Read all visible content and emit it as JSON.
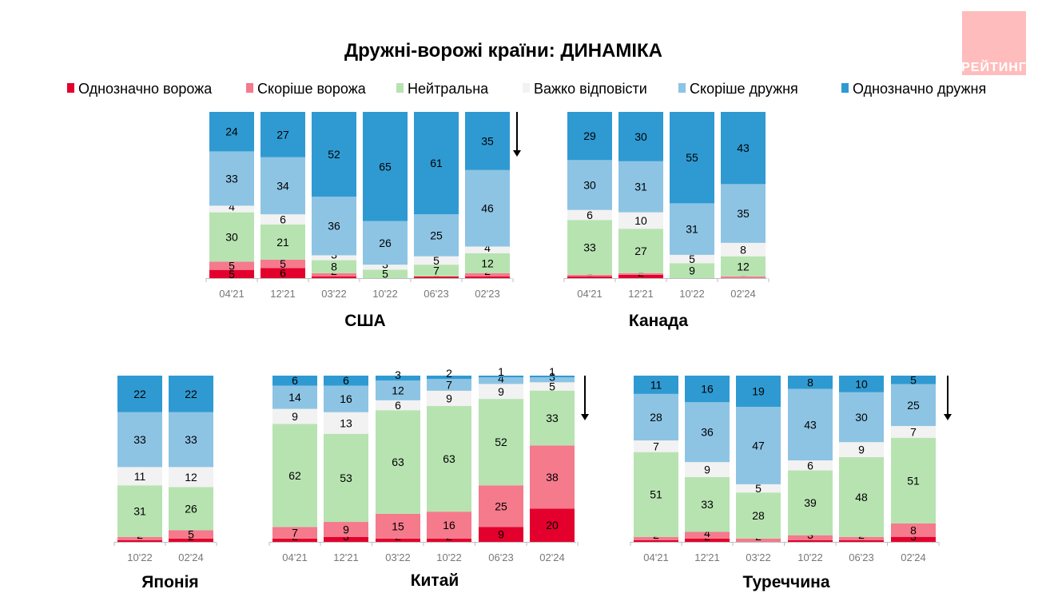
{
  "title": "Дружні-ворожі країни: ДИНАМІКА",
  "logo": "РЕЙТИНГ",
  "legend": [
    {
      "name": "Однозначно ворожа",
      "color": "#e3002d"
    },
    {
      "name": "Скоріше ворожа",
      "color": "#f47a8c"
    },
    {
      "name": "Нейтральна",
      "color": "#b7e3b1"
    },
    {
      "name": "Важко відповісти",
      "color": "#f2f2f2"
    },
    {
      "name": "Скоріше дружня",
      "color": "#8dc4e4"
    },
    {
      "name": "Однозначно дружня",
      "color": "#2f9ad2"
    }
  ],
  "chart_data": [
    {
      "type": "bar",
      "stacked": true,
      "title": "США",
      "categories": [
        "04'21",
        "12'21",
        "03'22",
        "10'22",
        "06'23",
        "02'23"
      ],
      "series": [
        {
          "name": "Однозначно ворожа",
          "values": [
            5,
            6,
            1,
            0,
            1,
            1
          ]
        },
        {
          "name": "Скоріше ворожа",
          "values": [
            5,
            5,
            2,
            0,
            0,
            2
          ]
        },
        {
          "name": "Нейтральна",
          "values": [
            30,
            21,
            8,
            5,
            7,
            12
          ]
        },
        {
          "name": "Важко відповісти",
          "values": [
            4,
            6,
            3,
            3,
            5,
            4
          ]
        },
        {
          "name": "Скоріше дружня",
          "values": [
            33,
            34,
            36,
            26,
            25,
            46
          ]
        },
        {
          "name": "Однозначно дружня",
          "values": [
            24,
            27,
            52,
            65,
            61,
            35
          ]
        }
      ],
      "trend_arrow": "down"
    },
    {
      "type": "bar",
      "stacked": true,
      "title": "Канада",
      "categories": [
        "04'21",
        "12'21",
        "10'22",
        "02'24"
      ],
      "series": [
        {
          "name": "Однозначно ворожа",
          "values": [
            1,
            2,
            0,
            0
          ]
        },
        {
          "name": "Скоріше ворожа",
          "values": [
            1,
            1,
            0,
            1
          ]
        },
        {
          "name": "Нейтральна",
          "values": [
            33,
            27,
            9,
            12
          ]
        },
        {
          "name": "Важко відповісти",
          "values": [
            6,
            10,
            5,
            8
          ]
        },
        {
          "name": "Скоріше дружня",
          "values": [
            30,
            31,
            31,
            35
          ]
        },
        {
          "name": "Однозначно дружня",
          "values": [
            29,
            30,
            55,
            43
          ]
        }
      ]
    },
    {
      "type": "bar",
      "stacked": true,
      "title": "Японія",
      "categories": [
        "10'22",
        "02'24"
      ],
      "series": [
        {
          "name": "Однозначно ворожа",
          "values": [
            1,
            2
          ]
        },
        {
          "name": "Скоріше ворожа",
          "values": [
            2,
            5
          ]
        },
        {
          "name": "Нейтральна",
          "values": [
            31,
            26
          ]
        },
        {
          "name": "Важко відповісти",
          "values": [
            11,
            12
          ]
        },
        {
          "name": "Скоріше дружня",
          "values": [
            33,
            33
          ]
        },
        {
          "name": "Однозначно дружня",
          "values": [
            22,
            22
          ]
        }
      ]
    },
    {
      "type": "bar",
      "stacked": true,
      "title": "Китай",
      "categories": [
        "04'21",
        "12'21",
        "03'22",
        "10'22",
        "06'23",
        "02'24"
      ],
      "series": [
        {
          "name": "Однозначно ворожа",
          "values": [
            2,
            3,
            2,
            2,
            9,
            20
          ]
        },
        {
          "name": "Скоріше ворожа",
          "values": [
            7,
            9,
            15,
            16,
            25,
            38
          ]
        },
        {
          "name": "Нейтральна",
          "values": [
            62,
            53,
            63,
            63,
            52,
            33
          ]
        },
        {
          "name": "Важко відповісти",
          "values": [
            9,
            13,
            6,
            9,
            9,
            5
          ]
        },
        {
          "name": "Скоріше дружня",
          "values": [
            14,
            16,
            12,
            7,
            4,
            3
          ]
        },
        {
          "name": "Однозначно дружня",
          "values": [
            6,
            6,
            3,
            2,
            1,
            1
          ]
        }
      ],
      "trend_arrow": "down"
    },
    {
      "type": "bar",
      "stacked": true,
      "title": "Туреччина",
      "categories": [
        "04'21",
        "12'21",
        "03'22",
        "10'22",
        "06'23",
        "02'24"
      ],
      "series": [
        {
          "name": "Однозначно ворожа",
          "values": [
            1,
            2,
            0,
            1,
            1,
            3
          ]
        },
        {
          "name": "Скоріше ворожа",
          "values": [
            2,
            4,
            2,
            3,
            2,
            8
          ]
        },
        {
          "name": "Нейтральна",
          "values": [
            51,
            33,
            28,
            39,
            48,
            51
          ]
        },
        {
          "name": "Важко відповісти",
          "values": [
            7,
            9,
            5,
            6,
            9,
            7
          ]
        },
        {
          "name": "Скоріше дружня",
          "values": [
            28,
            36,
            47,
            43,
            30,
            25
          ]
        },
        {
          "name": "Однозначно дружня",
          "values": [
            11,
            16,
            19,
            8,
            10,
            5
          ]
        }
      ],
      "trend_arrow": "down"
    }
  ]
}
